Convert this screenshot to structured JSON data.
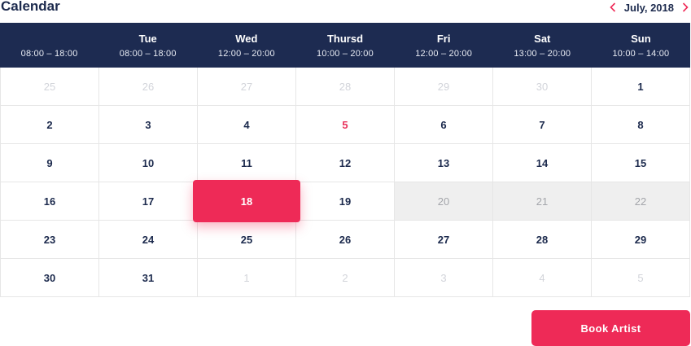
{
  "title": "Calendar",
  "month_label": "July, 2018",
  "accent_color": "#ee2a57",
  "header_color": "#1d2b51",
  "days": [
    {
      "name": "",
      "hours": "08:00 – 18:00"
    },
    {
      "name": "Tue",
      "hours": "08:00 – 18:00"
    },
    {
      "name": "Wed",
      "hours": "12:00 – 20:00"
    },
    {
      "name": "Thursd",
      "hours": "10:00 – 20:00"
    },
    {
      "name": "Fri",
      "hours": "12:00 – 20:00"
    },
    {
      "name": "Sat",
      "hours": "13:00 – 20:00"
    },
    {
      "name": "Sun",
      "hours": "10:00 – 14:00"
    }
  ],
  "weeks": [
    [
      {
        "d": "25",
        "s": "muted"
      },
      {
        "d": "26",
        "s": "muted"
      },
      {
        "d": "27",
        "s": "muted"
      },
      {
        "d": "28",
        "s": "muted"
      },
      {
        "d": "29",
        "s": "muted"
      },
      {
        "d": "30",
        "s": "muted"
      },
      {
        "d": "1",
        "s": "normal"
      }
    ],
    [
      {
        "d": "2",
        "s": "normal"
      },
      {
        "d": "3",
        "s": "normal"
      },
      {
        "d": "4",
        "s": "normal"
      },
      {
        "d": "5",
        "s": "today"
      },
      {
        "d": "6",
        "s": "normal"
      },
      {
        "d": "7",
        "s": "normal"
      },
      {
        "d": "8",
        "s": "normal"
      }
    ],
    [
      {
        "d": "9",
        "s": "normal"
      },
      {
        "d": "10",
        "s": "normal"
      },
      {
        "d": "11",
        "s": "normal"
      },
      {
        "d": "12",
        "s": "normal"
      },
      {
        "d": "13",
        "s": "normal"
      },
      {
        "d": "14",
        "s": "normal"
      },
      {
        "d": "15",
        "s": "normal"
      }
    ],
    [
      {
        "d": "16",
        "s": "normal"
      },
      {
        "d": "17",
        "s": "normal"
      },
      {
        "d": "18",
        "s": "selected"
      },
      {
        "d": "19",
        "s": "normal"
      },
      {
        "d": "20",
        "s": "unavailable"
      },
      {
        "d": "21",
        "s": "unavailable"
      },
      {
        "d": "22",
        "s": "unavailable"
      }
    ],
    [
      {
        "d": "23",
        "s": "normal"
      },
      {
        "d": "24",
        "s": "normal"
      },
      {
        "d": "25",
        "s": "normal"
      },
      {
        "d": "26",
        "s": "normal"
      },
      {
        "d": "27",
        "s": "normal"
      },
      {
        "d": "28",
        "s": "normal"
      },
      {
        "d": "29",
        "s": "normal"
      }
    ],
    [
      {
        "d": "30",
        "s": "normal"
      },
      {
        "d": "31",
        "s": "normal"
      },
      {
        "d": "1",
        "s": "muted"
      },
      {
        "d": "2",
        "s": "muted"
      },
      {
        "d": "3",
        "s": "muted"
      },
      {
        "d": "4",
        "s": "muted"
      },
      {
        "d": "5",
        "s": "muted"
      }
    ]
  ],
  "book_button_label": "Book Artist",
  "icons": {
    "prev": "chevron-left-icon",
    "next": "chevron-right-icon"
  }
}
